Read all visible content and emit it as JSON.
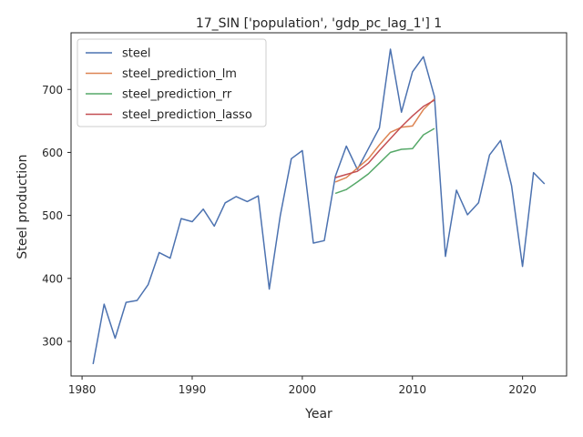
{
  "chart_data": {
    "type": "line",
    "title": "17_SIN ['population', 'gdp_pc_lag_1'] 1",
    "xlabel": "Year",
    "ylabel": "Steel production",
    "xlim": [
      1979,
      2024
    ],
    "ylim": [
      245,
      790
    ],
    "xticks": [
      1980,
      1990,
      2000,
      2010,
      2020
    ],
    "yticks": [
      300,
      400,
      500,
      600,
      700
    ],
    "legend_position": "top-left",
    "grid": false,
    "series": [
      {
        "name": "steel",
        "color": "#4c72b0",
        "x": [
          1981,
          1982,
          1983,
          1984,
          1985,
          1986,
          1987,
          1988,
          1989,
          1990,
          1991,
          1992,
          1993,
          1994,
          1995,
          1996,
          1997,
          1998,
          1999,
          2000,
          2001,
          2002,
          2003,
          2004,
          2005,
          2006,
          2007,
          2008,
          2009,
          2010,
          2011,
          2012,
          2013,
          2014,
          2015,
          2016,
          2017,
          2018,
          2019,
          2020,
          2021,
          2022
        ],
        "y": [
          264,
          359,
          305,
          362,
          365,
          390,
          441,
          432,
          495,
          490,
          510,
          483,
          520,
          530,
          522,
          531,
          383,
          500,
          590,
          603,
          456,
          460,
          562,
          610,
          573,
          606,
          639,
          764,
          664,
          728,
          752,
          689,
          435,
          540,
          501,
          520,
          596,
          619,
          547,
          419,
          568,
          550
        ]
      },
      {
        "name": "steel_prediction_lm",
        "color": "#dd8452",
        "x": [
          2003,
          2004,
          2005,
          2006,
          2007,
          2008,
          2009,
          2010,
          2011,
          2012
        ],
        "y": [
          553,
          560,
          575,
          590,
          612,
          632,
          640,
          642,
          668,
          685
        ]
      },
      {
        "name": "steel_prediction_rr",
        "color": "#55a868",
        "x": [
          2003,
          2004,
          2005,
          2006,
          2007,
          2008,
          2009,
          2010,
          2011,
          2012
        ],
        "y": [
          535,
          541,
          553,
          566,
          583,
          600,
          605,
          606,
          628,
          638
        ]
      },
      {
        "name": "steel_prediction_lasso",
        "color": "#c44e52",
        "x": [
          2003,
          2004,
          2005,
          2006,
          2007,
          2008,
          2009,
          2010,
          2011,
          2012
        ],
        "y": [
          560,
          565,
          570,
          583,
          603,
          622,
          641,
          658,
          673,
          683
        ]
      }
    ]
  }
}
